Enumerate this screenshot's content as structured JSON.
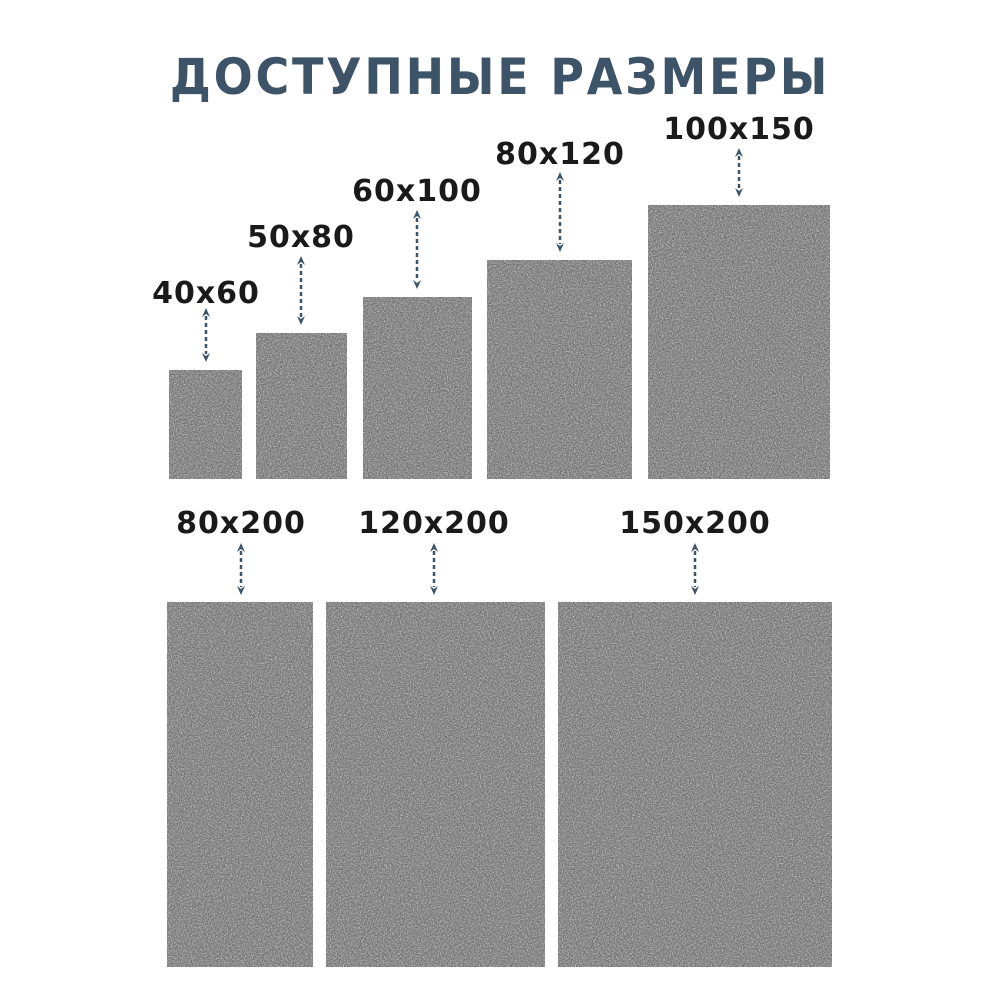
{
  "title": "ДОСТУПНЫЕ РАЗМЕРЫ",
  "colors": {
    "title": "#3d5468",
    "rug": "#6c6c6c",
    "arrow": "#3d5468",
    "label": "#1a1a1a"
  },
  "sizes": [
    {
      "label": "40x60"
    },
    {
      "label": "50x80"
    },
    {
      "label": "60x100"
    },
    {
      "label": "80x120"
    },
    {
      "label": "100x150"
    },
    {
      "label": "80x200"
    },
    {
      "label": "120x200"
    },
    {
      "label": "150x200"
    }
  ]
}
